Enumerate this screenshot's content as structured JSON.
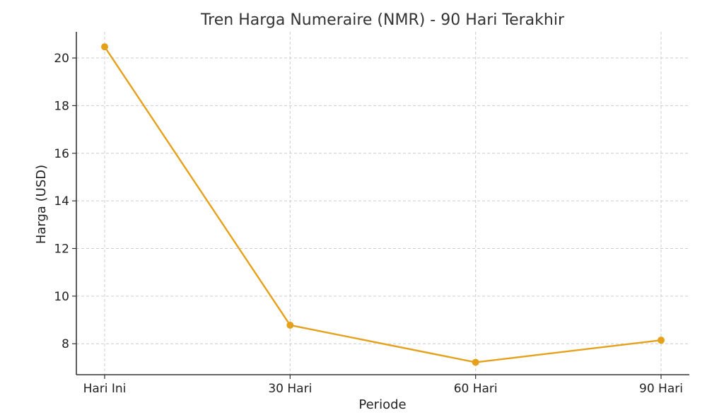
{
  "chart_data": {
    "type": "line",
    "title": "Tren Harga Numeraire (NMR) - 90 Hari Terakhir",
    "xlabel": "Periode",
    "ylabel": "Harga (USD)",
    "categories": [
      "Hari Ini",
      "30 Hari",
      "60 Hari",
      "90 Hari"
    ],
    "series": [
      {
        "values": [
          20.47,
          8.78,
          7.22,
          8.15
        ],
        "color": "#e5a11c"
      }
    ],
    "ylim": [
      6.7,
      21.1
    ],
    "yticks": [
      8,
      10,
      12,
      14,
      16,
      18,
      20
    ],
    "grid": true
  }
}
